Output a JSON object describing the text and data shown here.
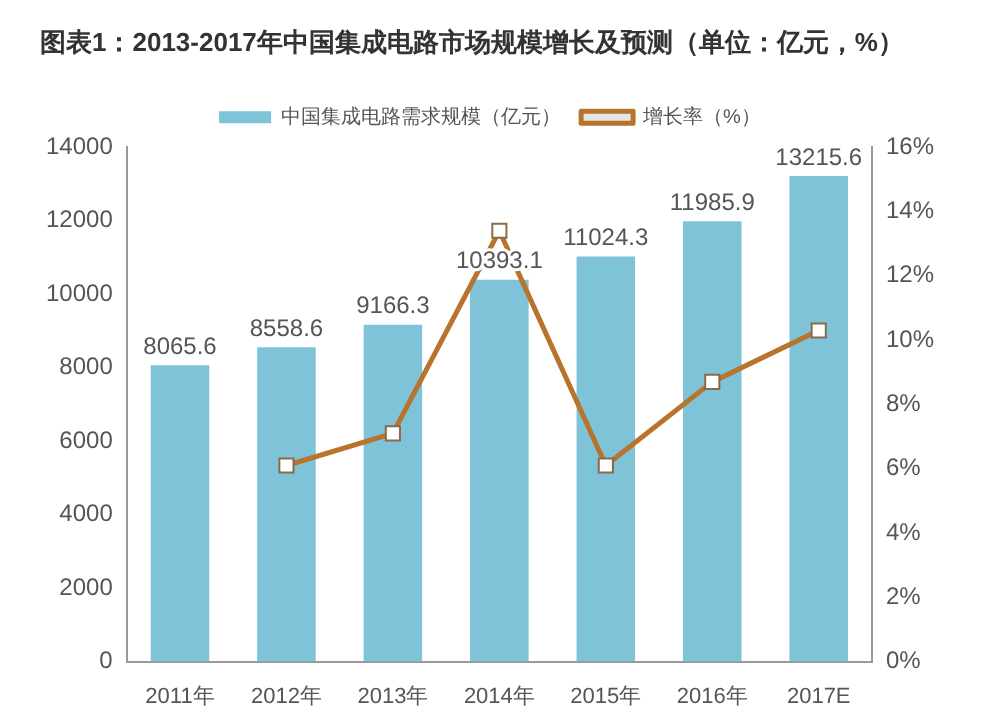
{
  "chart_data": {
    "type": "bar",
    "title": "图表1：2013-2017年中国集成电路市场规模增长及预测（单位：亿元，%）",
    "categories": [
      "2011年",
      "2012年",
      "2013年",
      "2014年",
      "2015年",
      "2016年",
      "2017E"
    ],
    "series": [
      {
        "name": "中国集成电路需求规模（亿元）",
        "color": "#7fc3d8",
        "values": [
          8065.6,
          8558.6,
          9166.3,
          10393.1,
          11024.3,
          11985.9,
          13215.6
        ],
        "value_labels": [
          "8065.6",
          "8558.6",
          "9166.3",
          "10393.1",
          "11024.3",
          "11985.9",
          "13215.6"
        ]
      },
      {
        "name": "增长率（%）",
        "type": "line",
        "axis": "y2",
        "color": "#b8732c",
        "values": [
          null,
          6.1,
          7.1,
          13.4,
          6.1,
          8.7,
          10.3
        ]
      }
    ],
    "ylim": [
      0,
      14000
    ],
    "yticks": [
      0,
      2000,
      4000,
      6000,
      8000,
      10000,
      12000,
      14000
    ],
    "y2lim": [
      0,
      16
    ],
    "y2ticks": [
      {
        "value": 0,
        "label": "0%"
      },
      {
        "value": 2,
        "label": "2%"
      },
      {
        "value": 4,
        "label": "4%"
      },
      {
        "value": 6,
        "label": "6%"
      },
      {
        "value": 8,
        "label": "8%"
      },
      {
        "value": 10,
        "label": "10%"
      },
      {
        "value": 12,
        "label": "12%"
      },
      {
        "value": 14,
        "label": "14%"
      },
      {
        "value": 16,
        "label": "16%"
      }
    ],
    "grid": false,
    "legend": "top",
    "marker": "square"
  }
}
